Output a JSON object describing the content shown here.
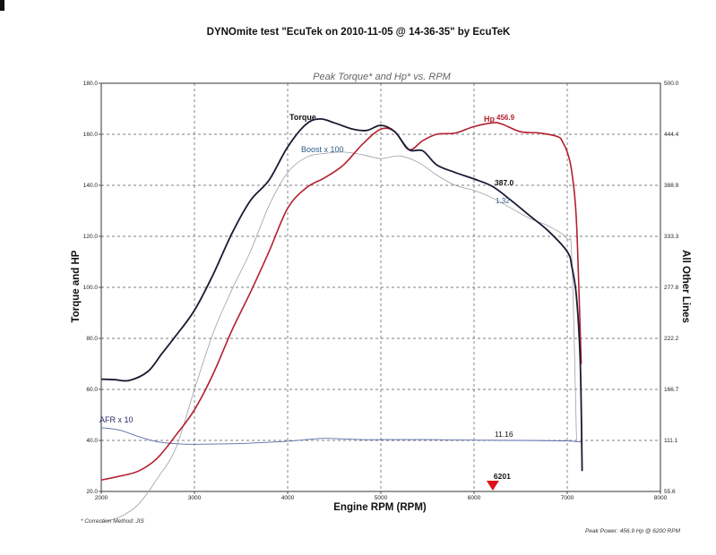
{
  "header": {
    "title": "DYNOmite test \"EcuTek on 2010-11-05 @ 14-36-35\" by EcuTeK",
    "subtitle": "Peak Torque* and Hp* vs. RPM"
  },
  "footer": {
    "correction": "* Correction Method: JIS",
    "peak_power": "Peak Power: 456.9 Hp @ 6200 RPM"
  },
  "colors": {
    "torque": "#1a1a33",
    "hp": "#b3202e",
    "boost": "#9aa0a8",
    "afr": "#5a6aa8",
    "boost_label": "#2e5a8a",
    "afr_label": "#2a2a6a",
    "marker": "#e0101c",
    "grid": "#555555"
  },
  "chart_data": {
    "type": "line",
    "title": "Peak Torque* and Hp* vs. RPM",
    "xlabel": "Engine RPM (RPM)",
    "ylabel": "Torque and HP",
    "y2label": "All Other Lines",
    "xlim": [
      2000,
      8000
    ],
    "ylim": [
      20,
      180
    ],
    "y2lim": [
      55.6,
      500.0
    ],
    "x_ticks": [
      "2000",
      "3000",
      "4000",
      "5000",
      "6000",
      "7000",
      "8000"
    ],
    "y_ticks": [
      "20.0",
      "40.0",
      "60.0",
      "80.0",
      "100.0",
      "120.0",
      "140.0",
      "160.0",
      "180.0"
    ],
    "y2_ticks": [
      "55.6",
      "111.1",
      "166.7",
      "222.2",
      "277.8",
      "333.3",
      "388.9",
      "444.4",
      "500.0"
    ],
    "grid": true,
    "series": [
      {
        "name": "Torque",
        "color_key": "torque",
        "end_label": "387.0",
        "x": [
          2000,
          2150,
          2300,
          2500,
          2650,
          2800,
          3000,
          3200,
          3400,
          3600,
          3800,
          4000,
          4200,
          4350,
          4500,
          4700,
          4850,
          5000,
          5150,
          5300,
          5450,
          5600,
          5800,
          6000,
          6200,
          6400,
          6600,
          6800,
          7000,
          7050,
          7100,
          7140,
          7160
        ],
        "y": [
          64,
          63.8,
          63.5,
          67,
          74,
          81,
          91,
          105,
          121,
          134,
          142,
          155,
          164,
          166,
          164.5,
          162,
          161.5,
          163.5,
          161,
          154,
          153.5,
          148,
          145,
          142.5,
          139.5,
          134,
          128,
          122,
          114,
          108,
          96,
          70,
          28
        ]
      },
      {
        "name": "Hp",
        "color_key": "hp",
        "peak_label": "456.9",
        "x": [
          2000,
          2200,
          2400,
          2600,
          2800,
          3000,
          3200,
          3400,
          3600,
          3800,
          4000,
          4200,
          4400,
          4600,
          4800,
          5000,
          5150,
          5300,
          5450,
          5600,
          5800,
          6000,
          6200,
          6300,
          6500,
          6700,
          6900,
          6950,
          7000,
          7050,
          7100,
          7150
        ],
        "y": [
          24.5,
          26,
          28,
          33,
          42,
          52,
          66,
          83,
          98,
          114,
          131,
          139,
          143,
          148,
          156,
          162,
          161,
          154,
          157.5,
          160,
          160.5,
          163,
          164.5,
          164,
          161,
          160.5,
          159,
          157,
          153,
          145,
          125,
          70
        ]
      },
      {
        "name": "Boost x 100",
        "color_key": "boost",
        "end_label": "1.32",
        "x": [
          2000,
          2200,
          2400,
          2600,
          2800,
          3000,
          3200,
          3400,
          3600,
          3800,
          4000,
          4200,
          4400,
          4600,
          4800,
          5000,
          5200,
          5400,
          5600,
          5800,
          6000,
          6200,
          6400,
          6600,
          6800,
          7000,
          7050,
          7100
        ],
        "y": [
          8,
          10,
          15,
          25,
          37,
          60,
          82,
          99,
          114,
          132,
          145,
          151,
          152.5,
          153,
          152,
          150.5,
          151.5,
          149,
          144,
          140,
          138,
          135,
          131,
          127,
          124,
          119,
          111,
          40
        ]
      },
      {
        "name": "AFR x 10",
        "color_key": "afr",
        "end_label": "11.16",
        "x": [
          2000,
          2200,
          2400,
          2600,
          2800,
          3000,
          3500,
          4000,
          4200,
          4400,
          4800,
          5000,
          5500,
          6000,
          6500,
          7000,
          7100,
          7150
        ],
        "y": [
          45,
          44,
          41.5,
          39.5,
          38.7,
          38.5,
          38.8,
          39.7,
          40.3,
          40.8,
          40.3,
          40.3,
          40.3,
          40.1,
          40,
          39.8,
          39.5,
          39.5
        ]
      }
    ],
    "marker": {
      "x": 6201,
      "label": "6201"
    }
  }
}
